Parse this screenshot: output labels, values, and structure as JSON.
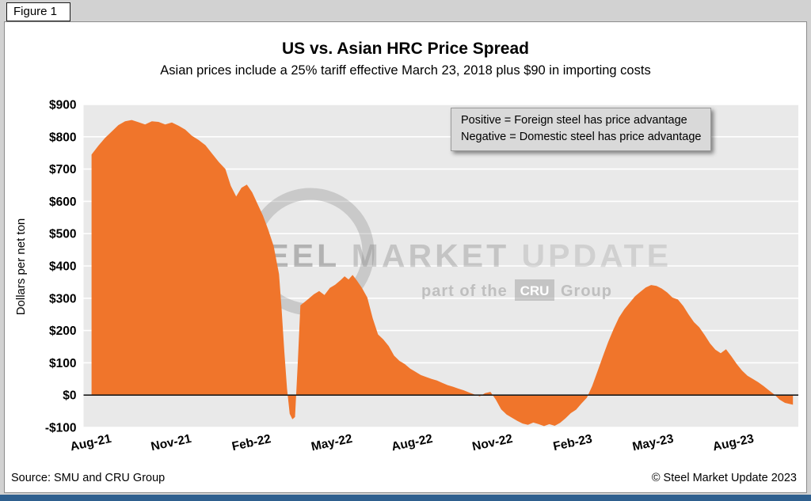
{
  "figure_label": "Figure 1",
  "chart_data": {
    "type": "area",
    "title": "US vs. Asian HRC Price Spread",
    "subtitle": "Asian prices include a 25% tariff effective March 23, 2018 plus $90 in importing costs",
    "ylabel": "Dollars per net ton",
    "ylim": [
      -100,
      900
    ],
    "xlim": [
      -0.3,
      26.4
    ],
    "plot_bg": "#e9e9e9",
    "gridline_color": "#ffffff",
    "area_color": "#f0752b",
    "zero_line_color": "#1a1a1a",
    "annotation": [
      "Positive = Foreign steel has price advantage",
      "Negative = Domestic steel has price advantage"
    ],
    "y_ticks": [
      {
        "v": 900,
        "label": "$900"
      },
      {
        "v": 800,
        "label": "$800"
      },
      {
        "v": 700,
        "label": "$700"
      },
      {
        "v": 600,
        "label": "$600"
      },
      {
        "v": 500,
        "label": "$500"
      },
      {
        "v": 400,
        "label": "$400"
      },
      {
        "v": 300,
        "label": "$300"
      },
      {
        "v": 200,
        "label": "$200"
      },
      {
        "v": 100,
        "label": "$100"
      },
      {
        "v": 0,
        "label": "$0"
      },
      {
        "v": -100,
        "label": "-$100"
      }
    ],
    "x_ticks": [
      {
        "pos": 0,
        "label": "Aug-21"
      },
      {
        "pos": 3,
        "label": "Nov-21"
      },
      {
        "pos": 6,
        "label": "Feb-22"
      },
      {
        "pos": 9,
        "label": "May-22"
      },
      {
        "pos": 12,
        "label": "Aug-22"
      },
      {
        "pos": 15,
        "label": "Nov-22"
      },
      {
        "pos": 18,
        "label": "Feb-23"
      },
      {
        "pos": 21,
        "label": "May-23"
      },
      {
        "pos": 24,
        "label": "Aug-23"
      }
    ],
    "series": [
      {
        "name": "US vs. Asian HRC price spread ($/net ton)",
        "points": [
          [
            0,
            745
          ],
          [
            0.25,
            772
          ],
          [
            0.5,
            796
          ],
          [
            0.75,
            816
          ],
          [
            1,
            836
          ],
          [
            1.25,
            848
          ],
          [
            1.5,
            852
          ],
          [
            1.75,
            845
          ],
          [
            2,
            838
          ],
          [
            2.25,
            848
          ],
          [
            2.5,
            846
          ],
          [
            2.75,
            838
          ],
          [
            3,
            844
          ],
          [
            3.25,
            834
          ],
          [
            3.5,
            822
          ],
          [
            3.75,
            803
          ],
          [
            4,
            790
          ],
          [
            4.25,
            774
          ],
          [
            4.5,
            748
          ],
          [
            4.75,
            722
          ],
          [
            5,
            700
          ],
          [
            5.2,
            648
          ],
          [
            5.4,
            615
          ],
          [
            5.6,
            642
          ],
          [
            5.8,
            652
          ],
          [
            6,
            628
          ],
          [
            6.2,
            592
          ],
          [
            6.4,
            556
          ],
          [
            6.6,
            512
          ],
          [
            6.8,
            462
          ],
          [
            7,
            375
          ],
          [
            7.1,
            265
          ],
          [
            7.2,
            135
          ],
          [
            7.3,
            20
          ],
          [
            7.4,
            -58
          ],
          [
            7.5,
            -75
          ],
          [
            7.6,
            -68
          ],
          [
            7.7,
            95
          ],
          [
            7.8,
            278
          ],
          [
            7.95,
            288
          ],
          [
            8.1,
            298
          ],
          [
            8.3,
            312
          ],
          [
            8.5,
            322
          ],
          [
            8.7,
            310
          ],
          [
            8.9,
            332
          ],
          [
            9.1,
            342
          ],
          [
            9.3,
            356
          ],
          [
            9.45,
            368
          ],
          [
            9.6,
            358
          ],
          [
            9.75,
            372
          ],
          [
            9.9,
            356
          ],
          [
            10.1,
            332
          ],
          [
            10.3,
            302
          ],
          [
            10.5,
            238
          ],
          [
            10.7,
            188
          ],
          [
            10.9,
            172
          ],
          [
            11.1,
            152
          ],
          [
            11.3,
            122
          ],
          [
            11.5,
            106
          ],
          [
            11.7,
            96
          ],
          [
            11.9,
            82
          ],
          [
            12.1,
            72
          ],
          [
            12.3,
            62
          ],
          [
            12.5,
            56
          ],
          [
            12.7,
            50
          ],
          [
            12.9,
            45
          ],
          [
            13.1,
            38
          ],
          [
            13.3,
            31
          ],
          [
            13.5,
            26
          ],
          [
            13.7,
            20
          ],
          [
            13.9,
            15
          ],
          [
            14.1,
            8
          ],
          [
            14.3,
            2
          ],
          [
            14.5,
            -4
          ],
          [
            14.7,
            6
          ],
          [
            14.9,
            10
          ],
          [
            15.1,
            -14
          ],
          [
            15.3,
            -44
          ],
          [
            15.5,
            -60
          ],
          [
            15.7,
            -70
          ],
          [
            15.9,
            -80
          ],
          [
            16.1,
            -88
          ],
          [
            16.3,
            -92
          ],
          [
            16.5,
            -85
          ],
          [
            16.7,
            -90
          ],
          [
            16.9,
            -96
          ],
          [
            17.1,
            -90
          ],
          [
            17.3,
            -95
          ],
          [
            17.5,
            -86
          ],
          [
            17.7,
            -72
          ],
          [
            17.9,
            -56
          ],
          [
            18.1,
            -45
          ],
          [
            18.3,
            -26
          ],
          [
            18.5,
            -8
          ],
          [
            18.7,
            28
          ],
          [
            18.9,
            74
          ],
          [
            19.1,
            120
          ],
          [
            19.3,
            165
          ],
          [
            19.5,
            205
          ],
          [
            19.7,
            240
          ],
          [
            19.9,
            266
          ],
          [
            20.1,
            286
          ],
          [
            20.3,
            306
          ],
          [
            20.5,
            320
          ],
          [
            20.7,
            333
          ],
          [
            20.9,
            341
          ],
          [
            21.1,
            338
          ],
          [
            21.3,
            330
          ],
          [
            21.5,
            318
          ],
          [
            21.7,
            302
          ],
          [
            21.9,
            296
          ],
          [
            22.1,
            276
          ],
          [
            22.3,
            250
          ],
          [
            22.5,
            226
          ],
          [
            22.7,
            210
          ],
          [
            22.9,
            186
          ],
          [
            23.1,
            160
          ],
          [
            23.3,
            141
          ],
          [
            23.5,
            130
          ],
          [
            23.7,
            142
          ],
          [
            23.9,
            120
          ],
          [
            24.1,
            96
          ],
          [
            24.3,
            76
          ],
          [
            24.5,
            60
          ],
          [
            24.7,
            50
          ],
          [
            24.9,
            40
          ],
          [
            25.1,
            28
          ],
          [
            25.3,
            15
          ],
          [
            25.5,
            2
          ],
          [
            25.7,
            -14
          ],
          [
            25.9,
            -24
          ],
          [
            26.2,
            -30
          ]
        ]
      }
    ]
  },
  "watermark": {
    "text_primary": "STEEL",
    "text_secondary": "MARKET",
    "text_tertiary": "UPDATE",
    "tagline_prefix": "part of the",
    "tagline_box": "CRU",
    "tagline_suffix": "Group"
  },
  "footer": {
    "source": "Source: SMU and CRU Group",
    "copyright": "© Steel Market Update 2023"
  }
}
